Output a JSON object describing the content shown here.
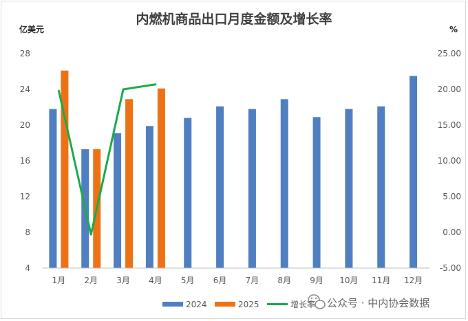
{
  "chart_data": {
    "type": "bar",
    "title": "内燃机商品出口月度金额及增长率",
    "ylabel": "亿美元",
    "y2label": "%",
    "categories": [
      "1月",
      "2月",
      "3月",
      "4月",
      "5月",
      "6月",
      "7月",
      "8月",
      "9月",
      "10月",
      "11月",
      "12月"
    ],
    "ylim": [
      4,
      28
    ],
    "yticks": [
      4,
      8,
      12,
      16,
      20,
      24,
      28
    ],
    "y2lim": [
      -5,
      25
    ],
    "y2ticks": [
      "25.00",
      "20.00",
      "15.00",
      "10.00",
      "5.00",
      "0.00",
      "-5.00"
    ],
    "series": [
      {
        "name": "2024",
        "type": "bar",
        "axis": "left",
        "color": "#4f7fc0",
        "values": [
          21.8,
          17.3,
          19.1,
          19.9,
          20.8,
          22.1,
          21.8,
          22.9,
          20.9,
          21.8,
          22.1,
          25.5
        ]
      },
      {
        "name": "2025",
        "type": "bar",
        "axis": "left",
        "color": "#ed7216",
        "values": [
          26.1,
          17.3,
          22.9,
          24.1,
          null,
          null,
          null,
          null,
          null,
          null,
          null,
          null
        ]
      },
      {
        "name": "增长率",
        "type": "line",
        "axis": "right",
        "color": "#1aab4b",
        "values": [
          19.8,
          -0.3,
          20.0,
          20.7,
          null,
          null,
          null,
          null,
          null,
          null,
          null,
          null
        ]
      }
    ],
    "legend_position": "bottom",
    "grid": false
  },
  "watermark": {
    "icon": "wechat-icon",
    "text": "公众号 · 中内协会数据"
  }
}
